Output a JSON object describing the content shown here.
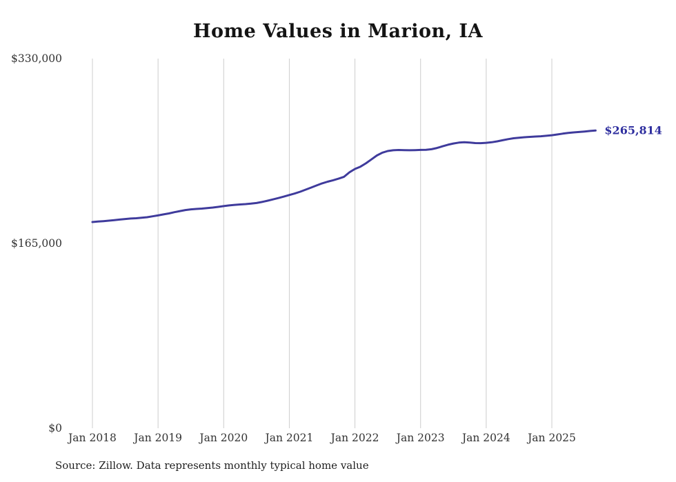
{
  "title": "Home Values in Marion, IA",
  "source": "Source: Zillow. Data represents monthly typical home value",
  "latest_value_label": "$265,814",
  "colors": {
    "line": "#3f3b9c",
    "end_label": "#2f2f9f",
    "grid": "#cccccc",
    "tick_text": "#333333"
  },
  "chart_data": {
    "type": "line",
    "title": "Home Values in Marion, IA",
    "x_start": "2018-01",
    "x_end": "2025-09",
    "x_unit": "month",
    "x_tick_labels": [
      "Jan 2018",
      "Jan 2019",
      "Jan 2020",
      "Jan 2021",
      "Jan 2022",
      "Jan 2023",
      "Jan 2024",
      "Jan 2025"
    ],
    "y_ticks": [
      {
        "value": 0,
        "label": "$0"
      },
      {
        "value": 165000,
        "label": "$165,000"
      },
      {
        "value": 330000,
        "label": "$330,000"
      }
    ],
    "ylim": [
      0,
      330000
    ],
    "grid": "vertical-only",
    "legend": "none",
    "annotation": {
      "text": "$265,814",
      "position": "line-end"
    },
    "series": [
      {
        "name": "Typical home value",
        "values": [
          184100,
          184500,
          184900,
          185300,
          185800,
          186300,
          186800,
          187200,
          187500,
          187900,
          188400,
          189200,
          190000,
          190900,
          191800,
          192900,
          193900,
          194800,
          195400,
          195800,
          196100,
          196500,
          197000,
          197600,
          198300,
          198900,
          199400,
          199800,
          200100,
          200500,
          201100,
          202000,
          203100,
          204300,
          205500,
          206800,
          208200,
          209600,
          211200,
          213000,
          214900,
          216800,
          218600,
          220100,
          221400,
          222800,
          224500,
          228500,
          231500,
          233500,
          236500,
          240000,
          243500,
          246000,
          247500,
          248200,
          248400,
          248300,
          248200,
          248300,
          248500,
          248600,
          249100,
          250200,
          251700,
          253100,
          254200,
          255000,
          255300,
          255100,
          254600,
          254500,
          254800,
          255300,
          256100,
          257100,
          258100,
          258900,
          259400,
          259800,
          260100,
          260400,
          260700,
          261100,
          261600,
          262300,
          263000,
          263600,
          264100,
          264500,
          264900,
          265400,
          265814
        ]
      }
    ]
  }
}
